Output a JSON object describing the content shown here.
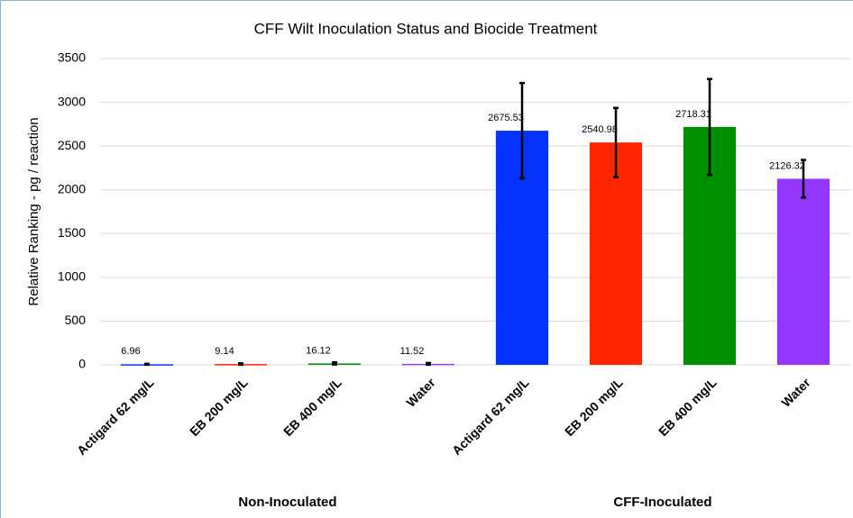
{
  "chart_data": {
    "type": "bar",
    "title": "CFF Wilt Inoculation Status and Biocide Treatment",
    "y_label": "Relative Ranking - pg / reaction",
    "categories": [
      "Actigard 62 mg/L",
      "EB 200 mg/L",
      "EB 400 mg/L",
      "Water",
      "Actigard 62 mg/L",
      "EB 200 mg/L",
      "EB 400 mg/L",
      "Water"
    ],
    "groups": [
      {
        "name": "Non-Inoculated",
        "size": 4
      },
      {
        "name": "CFF-Inoculated",
        "size": 4
      }
    ],
    "values": [
      6.96,
      9.14,
      16.12,
      11.52,
      2675.53,
      2540.98,
      2718.31,
      2126.32
    ],
    "errors": [
      5,
      8,
      12,
      10,
      545,
      395,
      548,
      215
    ],
    "colors": [
      "#0433ff",
      "#ff2600",
      "#008f00",
      "#9437ff",
      "#0433ff",
      "#ff2600",
      "#008f00",
      "#9437ff"
    ],
    "ylim": [
      0,
      3500
    ],
    "yticks": [
      0,
      500,
      1000,
      1500,
      2000,
      2500,
      3000,
      3500
    ],
    "grid": true
  }
}
